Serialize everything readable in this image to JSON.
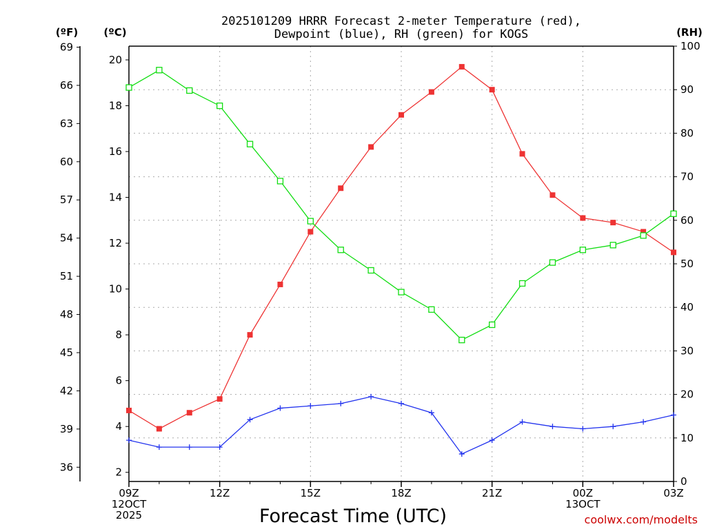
{
  "chart_data": {
    "type": "line",
    "title": [
      "2025101209 HRRR Forecast 2-meter Temperature (red),",
      "Dewpoint (blue), RH (green) for KOGS"
    ],
    "xlabel": "Forecast Time (UTC)",
    "credit": "coolwx.com/modelts",
    "units": {
      "left_f": "(ºF)",
      "left_c": "(ºC)",
      "right": "(RH)"
    },
    "x_hours": [
      0,
      1,
      2,
      3,
      4,
      5,
      6,
      7,
      8,
      9,
      10,
      11,
      12,
      13,
      14,
      15,
      16,
      17,
      18
    ],
    "x_ticks": [
      {
        "hour": 0,
        "lines": [
          "09Z",
          "12OCT",
          "2025"
        ]
      },
      {
        "hour": 3,
        "lines": [
          "12Z"
        ]
      },
      {
        "hour": 6,
        "lines": [
          "15Z"
        ]
      },
      {
        "hour": 9,
        "lines": [
          "18Z"
        ]
      },
      {
        "hour": 12,
        "lines": [
          "21Z"
        ]
      },
      {
        "hour": 15,
        "lines": [
          "00Z",
          "13OCT"
        ]
      },
      {
        "hour": 18,
        "lines": [
          "03Z"
        ]
      }
    ],
    "xlim": [
      0,
      18
    ],
    "ylim_c": [
      1.6,
      20.6
    ],
    "ylim_rh": [
      0,
      100
    ],
    "yticks_c": [
      2,
      4,
      6,
      8,
      10,
      12,
      14,
      16,
      18,
      20
    ],
    "yticks_f": [
      36,
      39,
      42,
      45,
      48,
      51,
      54,
      57,
      60,
      63,
      66,
      69
    ],
    "yticks_rh": [
      0,
      10,
      20,
      30,
      40,
      50,
      60,
      70,
      80,
      90,
      100
    ],
    "series": [
      {
        "name": "Temperature",
        "axis": "c",
        "color": "#ee3333",
        "marker": "filled-square",
        "values": [
          4.7,
          3.9,
          4.6,
          5.2,
          8.0,
          10.2,
          12.5,
          14.4,
          16.2,
          17.6,
          18.6,
          19.7,
          18.7,
          15.9,
          14.1,
          13.1,
          12.9,
          12.5,
          11.6
        ]
      },
      {
        "name": "Dewpoint",
        "axis": "c",
        "color": "#2233ee",
        "marker": "plus",
        "values": [
          3.4,
          3.1,
          3.1,
          3.1,
          4.3,
          4.8,
          4.9,
          5.0,
          5.3,
          5.0,
          4.6,
          2.8,
          3.4,
          4.2,
          4.0,
          3.9,
          4.0,
          4.2,
          4.5
        ]
      },
      {
        "name": "RH",
        "axis": "rh",
        "color": "#11dd11",
        "marker": "open-square",
        "values": [
          90.5,
          94.5,
          89.8,
          86.3,
          77.5,
          69.0,
          59.8,
          53.2,
          48.5,
          43.5,
          39.5,
          32.5,
          36.0,
          45.5,
          50.3,
          53.2,
          54.3,
          56.5,
          61.5
        ]
      }
    ]
  }
}
